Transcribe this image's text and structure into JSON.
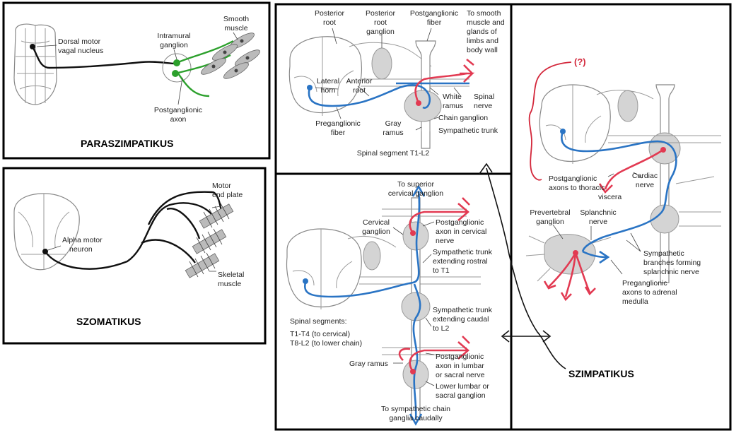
{
  "panels": {
    "parasympathetic": {
      "title": "PARASZIMPATIKUS",
      "labels": {
        "nucleus_1": "Dorsal motor",
        "nucleus_2": "vagal nucleus",
        "ganglion_1": "Intramural",
        "ganglion_2": "ganglion",
        "muscle_1": "Smooth",
        "muscle_2": "muscle",
        "axon_1": "Postganglionic",
        "axon_2": "axon"
      }
    },
    "somatic": {
      "title": "SZOMATIKUS",
      "labels": {
        "plate_1": "Motor",
        "plate_2": "end plate",
        "neuron_1": "Alpha motor",
        "neuron_2": "neuron",
        "muscle_1": "Skeletal",
        "muscle_2": "muscle"
      }
    },
    "spinal_segment": {
      "caption": "Spinal segment T1-L2",
      "labels": {
        "posterior_root_1": "Posterior",
        "posterior_root_2": "root",
        "post_root_ganglion_1": "Posterior",
        "post_root_ganglion_2": "root",
        "post_root_ganglion_3": "ganglion",
        "postganglionic_1": "Postganglionic",
        "postganglionic_2": "fiber",
        "target_1": "To smooth",
        "target_2": "muscle and",
        "target_3": "glands of",
        "target_4": "limbs and",
        "target_5": "body wall",
        "lateral_1": "Lateral",
        "lateral_2": "horn",
        "anterior_1": "Anterior",
        "anterior_2": "root",
        "white_1": "White",
        "white_2": "ramus",
        "spinal_1": "Spinal",
        "spinal_2": "nerve",
        "preganglionic_1": "Preganglionic",
        "preganglionic_2": "fiber",
        "gray_1": "Gray",
        "gray_2": "ramus",
        "chain": "Chain ganglion",
        "trunk": "Sympathetic trunk"
      }
    },
    "trunk": {
      "labels": {
        "superior_1": "To superior",
        "superior_2": "cervical ganglion",
        "cervical_1": "Cervical",
        "cervical_2": "ganglion",
        "cerv_axon_1": "Postganglionic",
        "cerv_axon_2": "axon in cervical",
        "cerv_axon_3": "nerve",
        "rostral_1": "Sympathetic trunk",
        "rostral_2": "extending rostral",
        "rostral_3": "to T1",
        "caudal_1": "Sympathetic trunk",
        "caudal_2": "extending caudal",
        "caudal_3": "to L2",
        "segments_1": "Spinal segments:",
        "segments_2": "T1-T4 (to cervical)",
        "segments_3": "T8-L2 (to lower chain)",
        "gray": "Gray ramus",
        "lumbar_axon_1": "Postganglionic",
        "lumbar_axon_2": "axon in lumbar",
        "lumbar_axon_3": "or sacral nerve",
        "lower_1": "Lower lumbar or",
        "lower_2": "sacral ganglion",
        "chain_1": "To sympathetic chain",
        "chain_2": "ganglia caudally"
      }
    },
    "visceral": {
      "question": "(?)",
      "labels": {
        "thoracic_1": "Postganglionic",
        "thoracic_2": "axons to thoracic",
        "thoracic_3": "viscera",
        "cardiac_1": "Cardiac",
        "cardiac_2": "nerve",
        "prevertebral_1": "Prevertebral",
        "prevertebral_2": "ganglion",
        "splanchnic_1": "Splanchnic",
        "splanchnic_2": "nerve",
        "branches_1": "Sympathetic",
        "branches_2": "branches forming",
        "branches_3": "splanchnic nerve",
        "adrenal_1": "Preganglionic",
        "adrenal_2": "axons to adrenal",
        "adrenal_3": "medulla"
      }
    },
    "sympathetic_title": "SZIMPATIKUS"
  },
  "colors": {
    "preganglionic": "#2a74c4",
    "postganglionic": "#e23a52",
    "parasympathetic": "#2ca02c",
    "somatic": "#111111",
    "ganglion": "#d4d4d4"
  }
}
